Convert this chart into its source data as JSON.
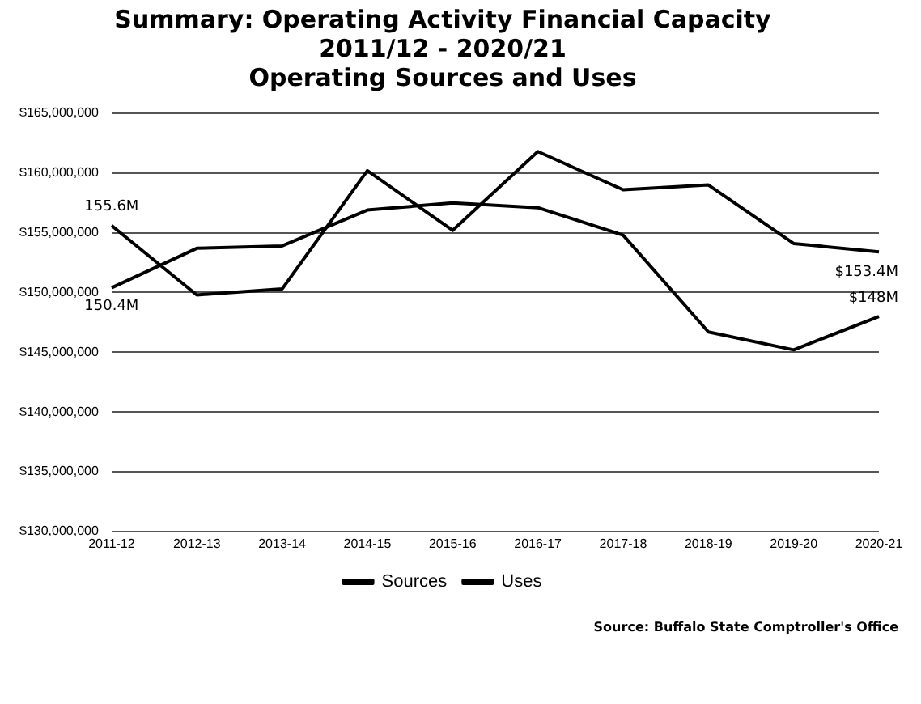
{
  "chart_data": {
    "type": "line",
    "title": "Summary: Operating Activity Financial Capacity\n2011/12 - 2020/21",
    "subtitle": "Operating Sources and Uses",
    "categories": [
      "2011-12",
      "2012-13",
      "2013-14",
      "2014-15",
      "2015-16",
      "2016-17",
      "2017-18",
      "2018-19",
      "2019-20",
      "2020-21"
    ],
    "series": [
      {
        "name": "Sources",
        "color": "#000000",
        "values": [
          155600000,
          149800000,
          150300000,
          160200000,
          155200000,
          161800000,
          158600000,
          159000000,
          154100000,
          153400000
        ]
      },
      {
        "name": "Uses",
        "color": "#000000",
        "values": [
          150400000,
          153700000,
          153900000,
          156900000,
          157500000,
          157100000,
          154800000,
          146700000,
          145200000,
          148000000
        ]
      }
    ],
    "ylim": [
      130000000,
      165000000
    ],
    "yticks": [
      {
        "value": 130000000,
        "label": "$130,000,000"
      },
      {
        "value": 135000000,
        "label": "$135,000,000"
      },
      {
        "value": 140000000,
        "label": "$140,000,000"
      },
      {
        "value": 145000000,
        "label": "$145,000,000"
      },
      {
        "value": 150000000,
        "label": "$150,000,000"
      },
      {
        "value": 155000000,
        "label": "$155,000,000"
      },
      {
        "value": 160000000,
        "label": "$160,000,000"
      },
      {
        "value": 165000000,
        "label": "$165,000,000"
      }
    ],
    "grid": "y",
    "legend": "bottom",
    "marker": "none",
    "line_style": "solid",
    "annotations": [
      {
        "text": "155.6M",
        "x": "2011-12",
        "y": 155600000
      },
      {
        "text": "150.4M",
        "x": "2011-12",
        "y": 150400000
      },
      {
        "text": "$153.4M",
        "x": "2020-21",
        "y": 153400000
      },
      {
        "text": "$148M",
        "x": "2020-21",
        "y": 148000000
      },
      "Source: Buffalo State Comptroller's Office"
    ]
  }
}
